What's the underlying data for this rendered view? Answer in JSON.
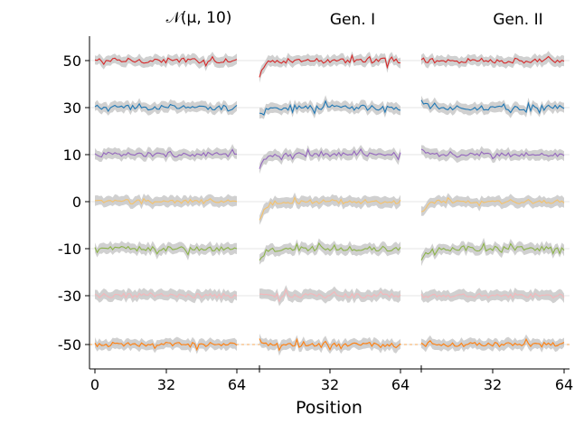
{
  "chart_data": {
    "type": "line",
    "xlabel": "Position",
    "ylabel": "",
    "panels": [
      {
        "title": "𝒩(μ, 10)",
        "xticks": [
          0,
          32,
          64
        ]
      },
      {
        "title": "Gen. I",
        "xticks": [
          32,
          64
        ]
      },
      {
        "title": "Gen. II",
        "xticks": [
          32,
          64
        ]
      }
    ],
    "xlim": [
      0,
      64
    ],
    "ylim": [
      -55,
      60
    ],
    "ytick_labels": [
      "50",
      "30",
      "10",
      "0",
      "-10",
      "-30",
      "-50"
    ],
    "colors": [
      "#d62728",
      "#1f77b4",
      "#9467bd",
      "#f5c26b",
      "#8cb34a",
      "#f4b6b9",
      "#ff7f0e"
    ],
    "band_color": "#c0c0c0",
    "series": [
      {
        "name": "50",
        "center": 50,
        "amplitude": 1.2,
        "start_offset": [
          0,
          -8,
          0
        ]
      },
      {
        "name": "30",
        "center": 30,
        "amplitude": 1.2,
        "start_offset": [
          0,
          -3,
          3
        ]
      },
      {
        "name": "10",
        "center": 10,
        "amplitude": 1.1,
        "start_offset": [
          0,
          -7,
          2
        ]
      },
      {
        "name": "0",
        "center": 0,
        "amplitude": 1.0,
        "start_offset": [
          0,
          -9,
          -6
        ]
      },
      {
        "name": "-10",
        "center": -10,
        "amplitude": 1.1,
        "start_offset": [
          0,
          -6,
          -6
        ]
      },
      {
        "name": "-30",
        "center": -30,
        "amplitude": 1.1,
        "start_offset": [
          0,
          0,
          0
        ]
      },
      {
        "name": "-50",
        "center": -50,
        "amplitude": 1.0,
        "start_offset": [
          0,
          2,
          0
        ]
      }
    ]
  }
}
